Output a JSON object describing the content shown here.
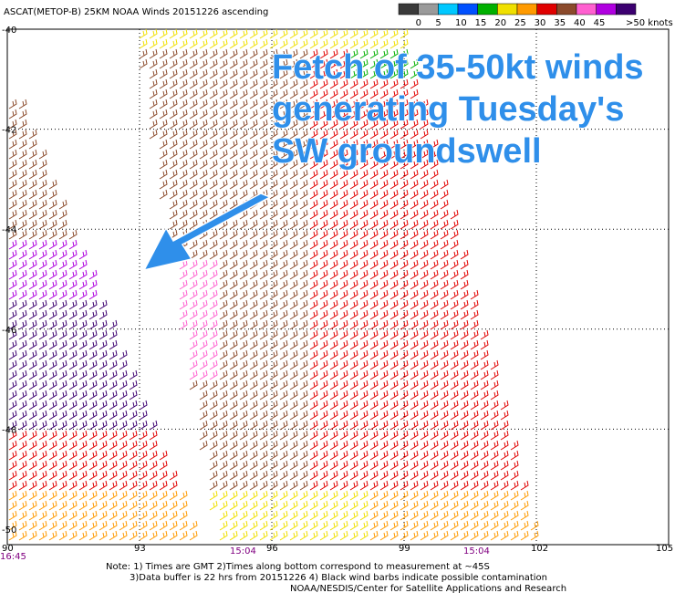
{
  "header": {
    "title": "ASCAT(METOP-B) 25KM NOAA Winds 20151226 ascending"
  },
  "legend": {
    "labels": [
      "0",
      "5",
      "10",
      "15",
      "20",
      "25",
      "30",
      "35",
      "40",
      "45",
      ">50 knots"
    ],
    "colors": [
      "#3a3a3a",
      "#9a9a9a",
      "#00c8ff",
      "#0050ff",
      "#00b000",
      "#f0e000",
      "#ff9a00",
      "#e00000",
      "#8b4a2b",
      "#ff60d0",
      "#b000e0",
      "#3c0070"
    ]
  },
  "axes": {
    "lat_labels": [
      "-40",
      "-42",
      "-44",
      "-46",
      "-48",
      "-50"
    ],
    "lon_labels": [
      "90",
      "93",
      "96",
      "99",
      "102",
      "105"
    ],
    "time_labels": [
      "16:45",
      "15:04",
      "15:04"
    ]
  },
  "notes": [
    "Note: 1) Times are GMT 2)Times along bottom correspond to measurement at ~45S",
    "3)Data buffer is 22 hrs from 20151226 4) Black wind barbs indicate possible contamination",
    "NOAA/NESDIS/Center for Satellite Applications and Research"
  ],
  "annotation": {
    "lines": [
      "Fetch of 35-50kt winds",
      "generating Tuesday's",
      "SW groundswell"
    ]
  }
}
